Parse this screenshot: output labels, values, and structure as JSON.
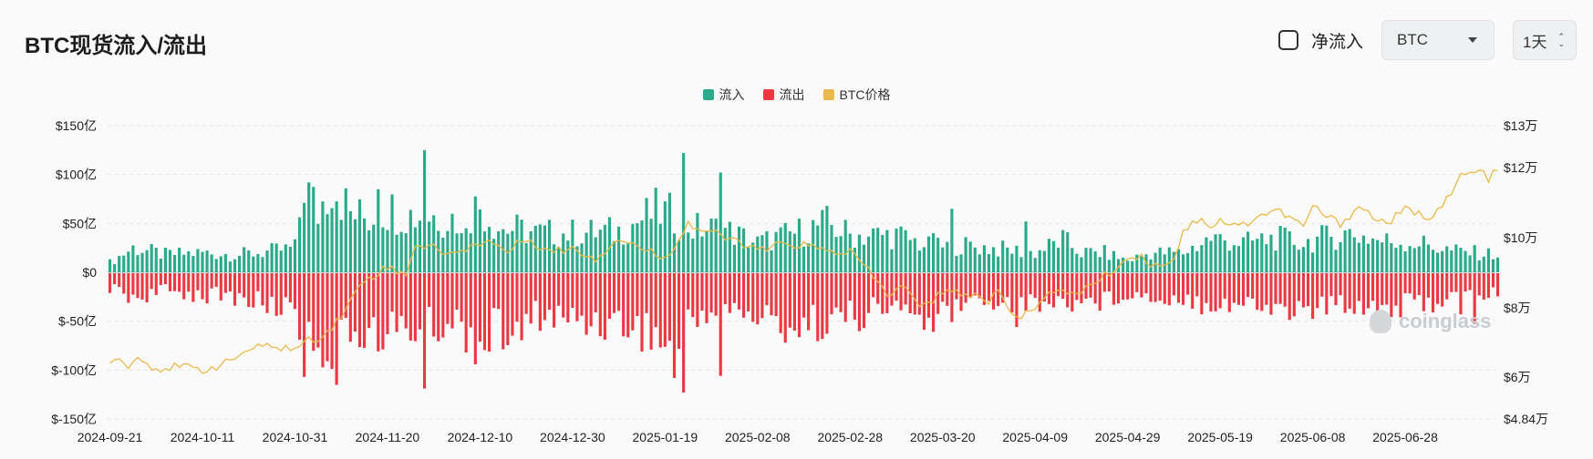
{
  "title": "BTC现货流入/流出",
  "controls": {
    "net_flow_label": "净流入",
    "coin_select": "BTC",
    "interval_select": "1天",
    "updown_up": "⌃",
    "updown_down": "⌄"
  },
  "legend": [
    {
      "label": "流入",
      "color": "#2aaa8a"
    },
    {
      "label": "流出",
      "color": "#ea3943"
    },
    {
      "label": "BTC价格",
      "color": "#e9b949"
    }
  ],
  "watermark": "coinglass",
  "chart_data": {
    "type": "bar",
    "y_left_ticks": [
      "$150亿",
      "$100亿",
      "$50亿",
      "$0",
      "$-50亿",
      "$-100亿",
      "$-150亿"
    ],
    "y_left_values": [
      150,
      100,
      50,
      0,
      -50,
      -100,
      -150
    ],
    "y_left_unit": "亿",
    "ylim": [
      -150,
      150
    ],
    "y_right_ticks": [
      "$13万",
      "$12万",
      "$10万",
      "$8万",
      "$6万",
      "$4.84万"
    ],
    "y_right_values": [
      13,
      12,
      10,
      8,
      6,
      4.84
    ],
    "y_right_unit": "万",
    "x_ticks": [
      "2024-09-21",
      "2024-10-11",
      "2024-10-31",
      "2024-11-20",
      "2024-12-10",
      "2024-12-30",
      "2025-01-19",
      "2025-02-08",
      "2025-02-28",
      "2025-03-20",
      "2025-04-09",
      "2025-04-29",
      "2025-05-19",
      "2025-06-08",
      "2025-06-28"
    ],
    "x_start": "2024-09-21",
    "x_end": "2025-07-17",
    "grid": true,
    "legend_position": "top-center",
    "inflow_anchors": [
      [
        0,
        10
      ],
      [
        5,
        25
      ],
      [
        12,
        18
      ],
      [
        20,
        20
      ],
      [
        28,
        18
      ],
      [
        36,
        22
      ],
      [
        40,
        25
      ],
      [
        42,
        92
      ],
      [
        45,
        60
      ],
      [
        48,
        95
      ],
      [
        52,
        60
      ],
      [
        56,
        55
      ],
      [
        60,
        65
      ],
      [
        66,
        58
      ],
      [
        70,
        58
      ],
      [
        75,
        55
      ],
      [
        80,
        68
      ],
      [
        84,
        45
      ],
      [
        88,
        44
      ],
      [
        92,
        40
      ],
      [
        100,
        40
      ],
      [
        110,
        42
      ],
      [
        118,
        62
      ],
      [
        122,
        58
      ],
      [
        126,
        45
      ],
      [
        132,
        45
      ],
      [
        140,
        30
      ],
      [
        148,
        40
      ],
      [
        155,
        50
      ],
      [
        160,
        38
      ],
      [
        170,
        38
      ],
      [
        178,
        25
      ],
      [
        183,
        28
      ],
      [
        190,
        25
      ],
      [
        200,
        20
      ],
      [
        206,
        33
      ],
      [
        210,
        20
      ],
      [
        215,
        20
      ],
      [
        220,
        12
      ],
      [
        225,
        20
      ],
      [
        232,
        20
      ],
      [
        238,
        35
      ],
      [
        245,
        30
      ],
      [
        252,
        35
      ],
      [
        258,
        30
      ],
      [
        262,
        35
      ],
      [
        268,
        40
      ],
      [
        275,
        32
      ],
      [
        283,
        30
      ],
      [
        290,
        22
      ],
      [
        300,
        18
      ]
    ],
    "inflow_spikes": [
      [
        43,
        92
      ],
      [
        58,
        85
      ],
      [
        68,
        125
      ],
      [
        76,
        40
      ],
      [
        84,
        42
      ],
      [
        124,
        122
      ],
      [
        130,
        55
      ],
      [
        132,
        102
      ],
      [
        178,
        40
      ],
      [
        182,
        65
      ],
      [
        198,
        52
      ]
    ],
    "outflow_anchors": [
      [
        0,
        15
      ],
      [
        5,
        25
      ],
      [
        12,
        18
      ],
      [
        20,
        22
      ],
      [
        28,
        25
      ],
      [
        36,
        35
      ],
      [
        40,
        30
      ],
      [
        42,
        82
      ],
      [
        45,
        60
      ],
      [
        48,
        95
      ],
      [
        52,
        60
      ],
      [
        56,
        55
      ],
      [
        60,
        60
      ],
      [
        66,
        58
      ],
      [
        70,
        55
      ],
      [
        75,
        50
      ],
      [
        80,
        72
      ],
      [
        84,
        55
      ],
      [
        88,
        70
      ],
      [
        92,
        42
      ],
      [
        100,
        48
      ],
      [
        110,
        50
      ],
      [
        118,
        62
      ],
      [
        122,
        90
      ],
      [
        126,
        45
      ],
      [
        132,
        35
      ],
      [
        140,
        45
      ],
      [
        148,
        55
      ],
      [
        155,
        48
      ],
      [
        160,
        45
      ],
      [
        170,
        35
      ],
      [
        178,
        50
      ],
      [
        183,
        30
      ],
      [
        190,
        28
      ],
      [
        200,
        30
      ],
      [
        206,
        30
      ],
      [
        210,
        28
      ],
      [
        215,
        28
      ],
      [
        220,
        20
      ],
      [
        225,
        25
      ],
      [
        232,
        25
      ],
      [
        238,
        30
      ],
      [
        245,
        32
      ],
      [
        252,
        35
      ],
      [
        258,
        38
      ],
      [
        262,
        35
      ],
      [
        268,
        30
      ],
      [
        275,
        35
      ],
      [
        283,
        32
      ],
      [
        290,
        25
      ],
      [
        300,
        20
      ]
    ],
    "outflow_spikes": [
      [
        48,
        98
      ],
      [
        58,
        80
      ],
      [
        68,
        118
      ],
      [
        124,
        122
      ],
      [
        132,
        105
      ],
      [
        178,
        60
      ],
      [
        182,
        50
      ],
      [
        196,
        55
      ],
      [
        236,
        42
      ],
      [
        258,
        35
      ],
      [
        292,
        42
      ],
      [
        295,
        52
      ]
    ],
    "price_anchors": [
      [
        0,
        6.5
      ],
      [
        3,
        6.5
      ],
      [
        4,
        6.35
      ],
      [
        6,
        6.55
      ],
      [
        8,
        6.4
      ],
      [
        10,
        6.25
      ],
      [
        15,
        6.3
      ],
      [
        20,
        6.2
      ],
      [
        25,
        6.4
      ],
      [
        30,
        6.8
      ],
      [
        35,
        6.9
      ],
      [
        40,
        6.8
      ],
      [
        42,
        7.0
      ],
      [
        46,
        7.2
      ],
      [
        49,
        7.6
      ],
      [
        52,
        8.2
      ],
      [
        55,
        8.8
      ],
      [
        58,
        9.0
      ],
      [
        60,
        9.2
      ],
      [
        62,
        9.0
      ],
      [
        64,
        9.0
      ],
      [
        66,
        9.8
      ],
      [
        70,
        9.7
      ],
      [
        75,
        9.5
      ],
      [
        78,
        9.8
      ],
      [
        82,
        9.9
      ],
      [
        86,
        9.6
      ],
      [
        90,
        10.0
      ],
      [
        95,
        9.6
      ],
      [
        100,
        9.7
      ],
      [
        105,
        9.4
      ],
      [
        110,
        10.0
      ],
      [
        115,
        9.7
      ],
      [
        120,
        9.4
      ],
      [
        125,
        10.4
      ],
      [
        128,
        10.2
      ],
      [
        130,
        10.2
      ],
      [
        132,
        10.0
      ],
      [
        136,
        9.9
      ],
      [
        140,
        9.6
      ],
      [
        145,
        9.8
      ],
      [
        150,
        9.8
      ],
      [
        155,
        9.6
      ],
      [
        160,
        9.6
      ],
      [
        163,
        9.2
      ],
      [
        168,
        8.4
      ],
      [
        172,
        8.6
      ],
      [
        175,
        8.0
      ],
      [
        178,
        8.2
      ],
      [
        181,
        8.6
      ],
      [
        184,
        8.4
      ],
      [
        188,
        8.3
      ],
      [
        190,
        8.2
      ],
      [
        192,
        8.5
      ],
      [
        195,
        7.9
      ],
      [
        197,
        7.7
      ],
      [
        199,
        7.9
      ],
      [
        202,
        8.4
      ],
      [
        206,
        8.4
      ],
      [
        210,
        8.5
      ],
      [
        214,
        8.8
      ],
      [
        218,
        9.2
      ],
      [
        220,
        9.4
      ],
      [
        222,
        9.5
      ],
      [
        226,
        9.2
      ],
      [
        230,
        9.4
      ],
      [
        232,
        10.2
      ],
      [
        234,
        10.4
      ],
      [
        236,
        10.6
      ],
      [
        238,
        10.3
      ],
      [
        240,
        10.5
      ],
      [
        244,
        10.3
      ],
      [
        248,
        10.6
      ],
      [
        252,
        10.8
      ],
      [
        256,
        10.5
      ],
      [
        258,
        10.3
      ],
      [
        260,
        10.9
      ],
      [
        263,
        10.6
      ],
      [
        266,
        10.4
      ],
      [
        270,
        10.9
      ],
      [
        273,
        10.6
      ],
      [
        276,
        10.4
      ],
      [
        280,
        10.8
      ],
      [
        282,
        10.7
      ],
      [
        285,
        10.6
      ],
      [
        287,
        10.8
      ],
      [
        290,
        11.2
      ],
      [
        292,
        11.8
      ],
      [
        294,
        11.8
      ],
      [
        296,
        11.9
      ],
      [
        298,
        11.7
      ],
      [
        300,
        11.9
      ]
    ]
  }
}
